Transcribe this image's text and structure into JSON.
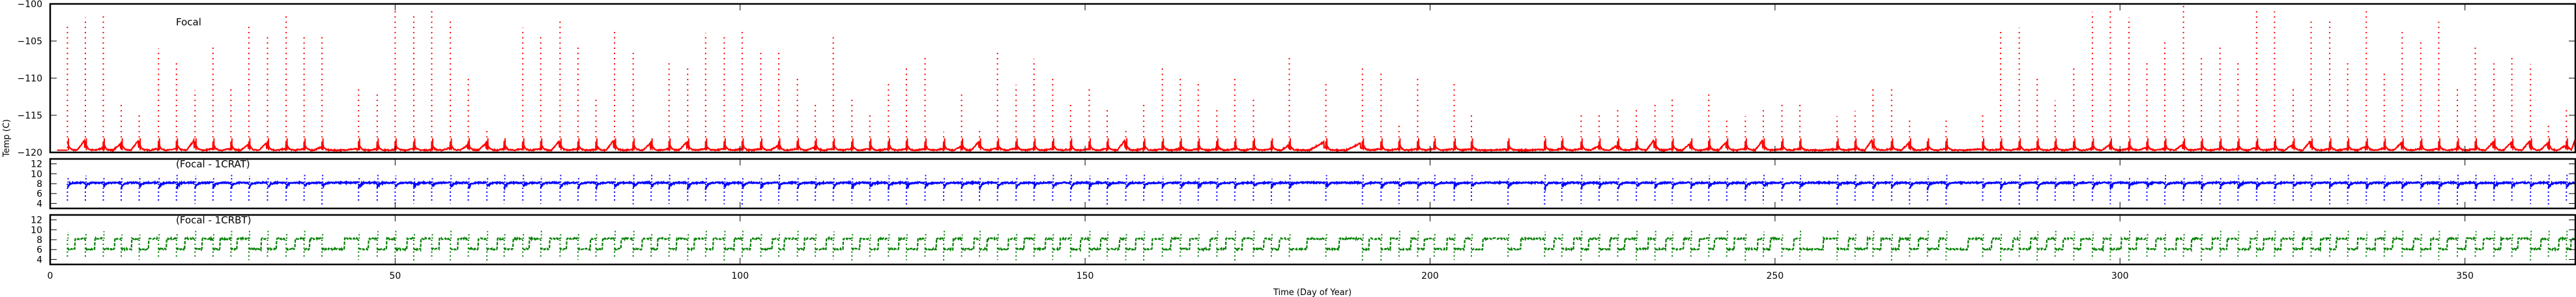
{
  "chart_data": [
    {
      "type": "line",
      "title": "Focal",
      "ylabel": "Temp (C)",
      "ylim": [
        -120,
        -100
      ],
      "yticks": [
        -100,
        -105,
        -110,
        -115,
        -120
      ],
      "xlim": [
        0,
        366
      ],
      "xticks": [
        0,
        50,
        100,
        150,
        200,
        250,
        300,
        350
      ],
      "color": "#ff0000",
      "baseline": -119.7,
      "spikes": [
        [
          2.5,
          -103
        ],
        [
          5.1,
          -101.8
        ],
        [
          7.7,
          -101.3
        ],
        [
          10.3,
          -113.3
        ],
        [
          12.9,
          -114.8
        ],
        [
          15.7,
          -106
        ],
        [
          18.3,
          -107.8
        ],
        [
          21.0,
          -111.6
        ],
        [
          23.6,
          -105.5
        ],
        [
          26.2,
          -111
        ],
        [
          28.8,
          -102.8
        ],
        [
          31.5,
          -104.1
        ],
        [
          34.2,
          -101.3
        ],
        [
          36.8,
          -104.1
        ],
        [
          39.4,
          -104.2
        ],
        [
          44.7,
          -111.2
        ],
        [
          47.4,
          -112
        ],
        [
          50.0,
          -100.5
        ],
        [
          52.7,
          -101.4
        ],
        [
          55.3,
          -100.9
        ],
        [
          58.0,
          -102.2
        ],
        [
          60.6,
          -109.6
        ],
        [
          63.3,
          -117
        ],
        [
          65.8,
          -119.2
        ],
        [
          68.5,
          -103.2
        ],
        [
          71.1,
          -104.4
        ],
        [
          73.9,
          -101.9
        ],
        [
          76.5,
          -105.6
        ],
        [
          79.1,
          -112.5
        ],
        [
          81.8,
          -103.5
        ],
        [
          84.5,
          -106.3
        ],
        [
          87.1,
          -118.3
        ],
        [
          89.7,
          -108
        ],
        [
          92.4,
          -108.4
        ],
        [
          95.0,
          -103.9
        ],
        [
          97.7,
          -104
        ],
        [
          100.3,
          -103.3
        ],
        [
          103.0,
          -106.5
        ],
        [
          105.6,
          -106.4
        ],
        [
          108.3,
          -109.9
        ],
        [
          110.9,
          -113.5
        ],
        [
          113.5,
          -104.2
        ],
        [
          116.2,
          -112.6
        ],
        [
          118.8,
          -114.5
        ],
        [
          121.5,
          -110.6
        ],
        [
          124.1,
          -108.2
        ],
        [
          126.8,
          -107.2
        ],
        [
          129.5,
          -117.2
        ],
        [
          132.1,
          -112.2
        ],
        [
          134.7,
          -117
        ],
        [
          137.3,
          -106.3
        ],
        [
          140.0,
          -110.9
        ],
        [
          142.6,
          -107.4
        ],
        [
          145.3,
          -109.6
        ],
        [
          147.9,
          -113.6
        ],
        [
          150.6,
          -111.4
        ],
        [
          153.2,
          -113.8
        ],
        [
          155.9,
          -116.7
        ],
        [
          158.5,
          -113.6
        ],
        [
          161.2,
          -108.5
        ],
        [
          163.8,
          -109.6
        ],
        [
          166.4,
          -110.3
        ],
        [
          169.1,
          -113.8
        ],
        [
          171.7,
          -110.1
        ],
        [
          174.4,
          -112.8
        ],
        [
          177.0,
          -118.2
        ],
        [
          179.6,
          -107
        ],
        [
          184.9,
          -110.6
        ],
        [
          190.2,
          -108.6
        ],
        [
          192.9,
          -109.4
        ],
        [
          195.5,
          -115.9
        ],
        [
          198.2,
          -109.6
        ],
        [
          200.6,
          -117.7
        ],
        [
          203.5,
          -110.4
        ],
        [
          206.0,
          -114.8
        ],
        [
          211.3,
          -118.7
        ],
        [
          216.6,
          -117.8
        ],
        [
          219.1,
          -117.4
        ],
        [
          221.9,
          -114.5
        ],
        [
          224.5,
          -114.6
        ],
        [
          227.2,
          -113.8
        ],
        [
          229.9,
          -113.8
        ],
        [
          232.6,
          -113.5
        ],
        [
          235.1,
          -112.6
        ],
        [
          237.8,
          -118.1
        ],
        [
          240.4,
          -112.2
        ],
        [
          243.0,
          -115.4
        ],
        [
          245.7,
          -115.1
        ],
        [
          248.3,
          -114.1
        ],
        [
          251.0,
          -113.2
        ],
        [
          253.6,
          -113.6
        ],
        [
          259.0,
          -115.1
        ],
        [
          261.6,
          -114.4
        ],
        [
          264.2,
          -111.4
        ],
        [
          266.9,
          -111.3
        ],
        [
          269.5,
          -115.6
        ],
        [
          272.1,
          -118
        ],
        [
          274.8,
          -115.4
        ],
        [
          280.1,
          -114.5
        ],
        [
          282.7,
          -103.4
        ],
        [
          285.4,
          -103.2
        ],
        [
          288.0,
          -109.9
        ],
        [
          290.6,
          -113
        ],
        [
          293.3,
          -108.6
        ],
        [
          296.0,
          -101.1
        ],
        [
          298.6,
          -100.5
        ],
        [
          301.3,
          -101.8
        ],
        [
          303.9,
          -107.7
        ],
        [
          306.5,
          -105.1
        ],
        [
          309.2,
          -100.2
        ],
        [
          311.8,
          -107.3
        ],
        [
          314.5,
          -105.5
        ],
        [
          317.1,
          -107.8
        ],
        [
          319.8,
          -100.7
        ],
        [
          322.4,
          -101
        ],
        [
          325.1,
          -111.5
        ],
        [
          327.7,
          -102.2
        ],
        [
          330.4,
          -102
        ],
        [
          333.0,
          -107.7
        ],
        [
          335.7,
          -100.6
        ],
        [
          338.3,
          -109
        ],
        [
          340.9,
          -103.4
        ],
        [
          343.6,
          -104.7
        ],
        [
          346.2,
          -102.4
        ],
        [
          348.9,
          -111
        ],
        [
          351.5,
          -105.8
        ],
        [
          354.2,
          -108
        ],
        [
          356.8,
          -107
        ],
        [
          359.5,
          -108.1
        ],
        [
          362.1,
          -116.3
        ],
        [
          364.7,
          -114.3
        ]
      ]
    },
    {
      "type": "scatter",
      "title": "(Focal - 1CRAT)",
      "ylim": [
        3,
        13
      ],
      "yticks": [
        4,
        6,
        8,
        10,
        12
      ],
      "xlim": [
        0,
        366
      ],
      "color": "#0000ff",
      "typical_value": 8.2,
      "dip_min": 4
    },
    {
      "type": "scatter",
      "title": "(Focal - 1CRBT)",
      "ylim": [
        3,
        13
      ],
      "yticks": [
        4,
        6,
        8,
        10,
        12
      ],
      "xlim": [
        0,
        366
      ],
      "xticks": [
        0,
        50,
        100,
        150,
        200,
        250,
        300,
        350
      ],
      "xlabel": "Time (Day of Year)",
      "color": "#008000",
      "levels": [
        8.2,
        6
      ],
      "dip_min": 4
    }
  ]
}
